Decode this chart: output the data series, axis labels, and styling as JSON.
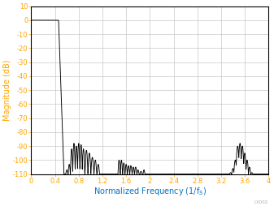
{
  "title": "",
  "xlabel": "Normalized Frequency (1/f$_S$)",
  "ylabel": "Magnitude (dB)",
  "xlim": [
    0,
    4
  ],
  "ylim": [
    -110,
    10
  ],
  "xticks": [
    0,
    0.4,
    0.8,
    1.2,
    1.6,
    2.0,
    2.4,
    2.8,
    3.2,
    3.6,
    4.0
  ],
  "yticks": [
    10,
    0,
    -10,
    -20,
    -30,
    -40,
    -50,
    -60,
    -70,
    -80,
    -90,
    -100,
    -110
  ],
  "xtick_labels": [
    "0",
    "0.4",
    "0.8",
    "1.2",
    "1.6",
    "2",
    "2.4",
    "2.8",
    "3.2",
    "3.6",
    "4"
  ],
  "ytick_labels": [
    "10",
    "0",
    "-10",
    "-20",
    "-30",
    "-40",
    "-50",
    "-60",
    "-70",
    "-80",
    "-90",
    "-100",
    "-110"
  ],
  "line_color": "#000000",
  "grid_color": "#c8c8c8",
  "label_color_x": "#0070c0",
  "label_color_y": "#ffa500",
  "watermark": "LX002",
  "background_color": "#ffffff",
  "tick_label_color": "#ffa500",
  "figsize": [
    3.37,
    2.54
  ],
  "dpi": 100
}
